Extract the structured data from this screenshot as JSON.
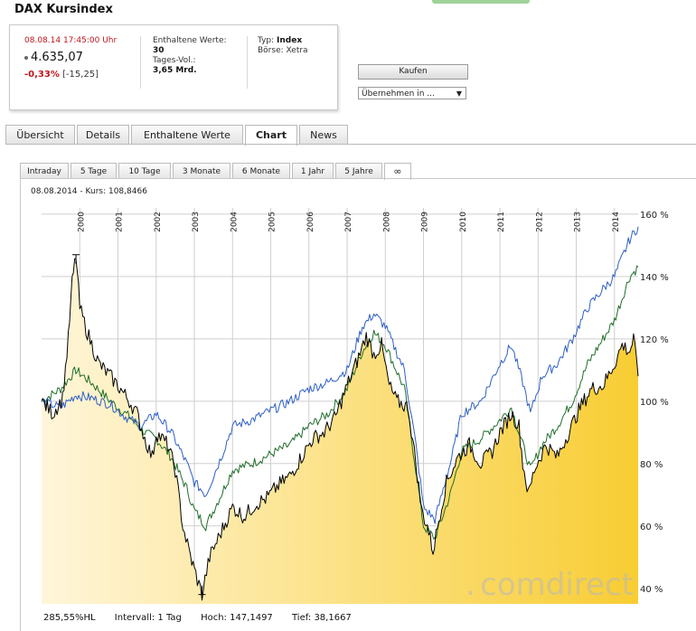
{
  "page": {
    "title": "DAX Kursindex"
  },
  "quote": {
    "datetime": "08.08.14  17:45:00 Uhr",
    "price": "4.635,07",
    "change_pct": "-0,33%",
    "change_abs": "[-15,25]",
    "components_label": "Enthaltene Werte:",
    "components_value": "30",
    "volume_label": "Tages-Vol.:",
    "volume_value": "3,65 Mrd.",
    "type_label": "Typ:",
    "type_value": "Index",
    "exchange_label": "Börse:",
    "exchange_value": "Xetra"
  },
  "actions": {
    "buy_label": "Kaufen",
    "transfer_select": "Übernehmen in ..."
  },
  "tabs": [
    "Übersicht",
    "Details",
    "Enthaltene Werte",
    "Chart",
    "News"
  ],
  "active_tab": "Chart",
  "ranges": [
    "Intraday",
    "5 Tage",
    "10 Tage",
    "3 Monate",
    "6 Monate",
    "1 Jahr",
    "5 Jahre",
    "∞"
  ],
  "active_range": "∞",
  "chart_info": {
    "date": "08.08.2014",
    "kurs": "Kurs: 108,8466",
    "separator": "-"
  },
  "watermark": {
    "text": "comdirect"
  },
  "footer": {
    "hl": "285,55%HL",
    "interval": "Intervall: 1 Tag",
    "high": "Hoch: 147,1497",
    "low": "Tief: 38,1667"
  },
  "colors": {
    "index": "#000000",
    "compare_blue": "#2f5fc4",
    "compare_green": "#1f6e2a",
    "fill_light": "#fff6da",
    "fill_dark": "#f8cd33"
  },
  "chart_data": {
    "type": "line",
    "x_ticks": [
      "2000",
      "2001",
      "2002",
      "2003",
      "2004",
      "2005",
      "2006",
      "2007",
      "2008",
      "2009",
      "2010",
      "2011",
      "2012",
      "2013",
      "2014"
    ],
    "y_ticks": [
      "160 %",
      "140 %",
      "120 %",
      "100 %",
      "80 %",
      "60 %",
      "40 %"
    ],
    "ylim": [
      35,
      162
    ],
    "xlim": [
      1999.0,
      2014.62
    ],
    "grid": true,
    "series": [
      {
        "color": "#000000",
        "filled": true,
        "x": [
          1999.0,
          1999.3,
          1999.55,
          1999.7,
          1999.8,
          1999.9,
          2000.0,
          2000.2,
          2000.5,
          2000.8,
          2001.0,
          2001.3,
          2001.5,
          2001.7,
          2001.9,
          2002.0,
          2002.3,
          2002.5,
          2002.7,
          2002.9,
          2003.0,
          2003.2,
          2003.4,
          2003.7,
          2004.0,
          2004.3,
          2004.6,
          2004.9,
          2005.2,
          2005.5,
          2005.8,
          2006.1,
          2006.4,
          2006.7,
          2007.0,
          2007.3,
          2007.5,
          2007.7,
          2007.9,
          2008.1,
          2008.3,
          2008.6,
          2008.8,
          2008.95,
          2009.1,
          2009.25,
          2009.4,
          2009.6,
          2009.9,
          2010.2,
          2010.5,
          2010.8,
          2011.0,
          2011.3,
          2011.5,
          2011.6,
          2011.75,
          2011.9,
          2012.2,
          2012.5,
          2012.8,
          2013.1,
          2013.4,
          2013.7,
          2014.0,
          2014.2,
          2014.4,
          2014.5,
          2014.62
        ],
        "values": [
          100,
          96,
          101,
          120,
          138,
          147,
          130,
          122,
          112,
          108,
          105,
          100,
          96,
          88,
          82,
          90,
          86,
          78,
          60,
          50,
          46,
          38,
          50,
          58,
          66,
          63,
          67,
          69,
          73,
          76,
          82,
          88,
          90,
          95,
          105,
          114,
          121,
          115,
          118,
          105,
          100,
          98,
          80,
          65,
          60,
          52,
          62,
          74,
          82,
          86,
          80,
          84,
          90,
          96,
          92,
          80,
          70,
          78,
          86,
          82,
          90,
          98,
          104,
          105,
          112,
          118,
          116,
          120,
          108
        ]
      },
      {
        "color": "#2f5fc4",
        "filled": false,
        "x": [
          1999.0,
          1999.5,
          1999.9,
          2000.3,
          2000.8,
          2001.2,
          2001.6,
          2002.0,
          2002.4,
          2002.8,
          2003.0,
          2003.3,
          2003.7,
          2004.0,
          2004.5,
          2005.0,
          2005.5,
          2006.0,
          2006.5,
          2007.0,
          2007.4,
          2007.7,
          2008.0,
          2008.5,
          2008.8,
          2009.0,
          2009.3,
          2009.7,
          2010.0,
          2010.5,
          2011.0,
          2011.3,
          2011.6,
          2011.8,
          2012.1,
          2012.5,
          2012.9,
          2013.3,
          2013.7,
          2014.0,
          2014.4,
          2014.62
        ],
        "values": [
          100,
          98,
          102,
          101,
          99,
          95,
          92,
          96,
          90,
          80,
          74,
          70,
          82,
          92,
          94,
          97,
          100,
          104,
          106,
          110,
          124,
          128,
          124,
          110,
          86,
          66,
          62,
          80,
          96,
          100,
          112,
          118,
          106,
          96,
          108,
          112,
          120,
          130,
          136,
          140,
          152,
          156
        ]
      },
      {
        "color": "#1f6e2a",
        "filled": false,
        "x": [
          1999.0,
          1999.5,
          1999.9,
          2000.3,
          2000.8,
          2001.3,
          2001.7,
          2002.0,
          2002.4,
          2002.8,
          2003.0,
          2003.3,
          2003.7,
          2004.0,
          2004.5,
          2005.0,
          2005.5,
          2006.0,
          2006.5,
          2007.0,
          2007.4,
          2007.7,
          2008.0,
          2008.5,
          2008.8,
          2009.0,
          2009.3,
          2009.7,
          2010.0,
          2010.5,
          2011.0,
          2011.3,
          2011.6,
          2011.8,
          2012.1,
          2012.5,
          2012.9,
          2013.3,
          2013.7,
          2014.0,
          2014.4,
          2014.62
        ],
        "values": [
          100,
          104,
          110,
          106,
          100,
          95,
          90,
          88,
          82,
          72,
          65,
          60,
          70,
          78,
          80,
          83,
          86,
          92,
          96,
          104,
          116,
          122,
          118,
          104,
          78,
          60,
          56,
          70,
          84,
          88,
          94,
          98,
          86,
          78,
          86,
          92,
          100,
          112,
          120,
          126,
          140,
          143
        ]
      }
    ]
  }
}
